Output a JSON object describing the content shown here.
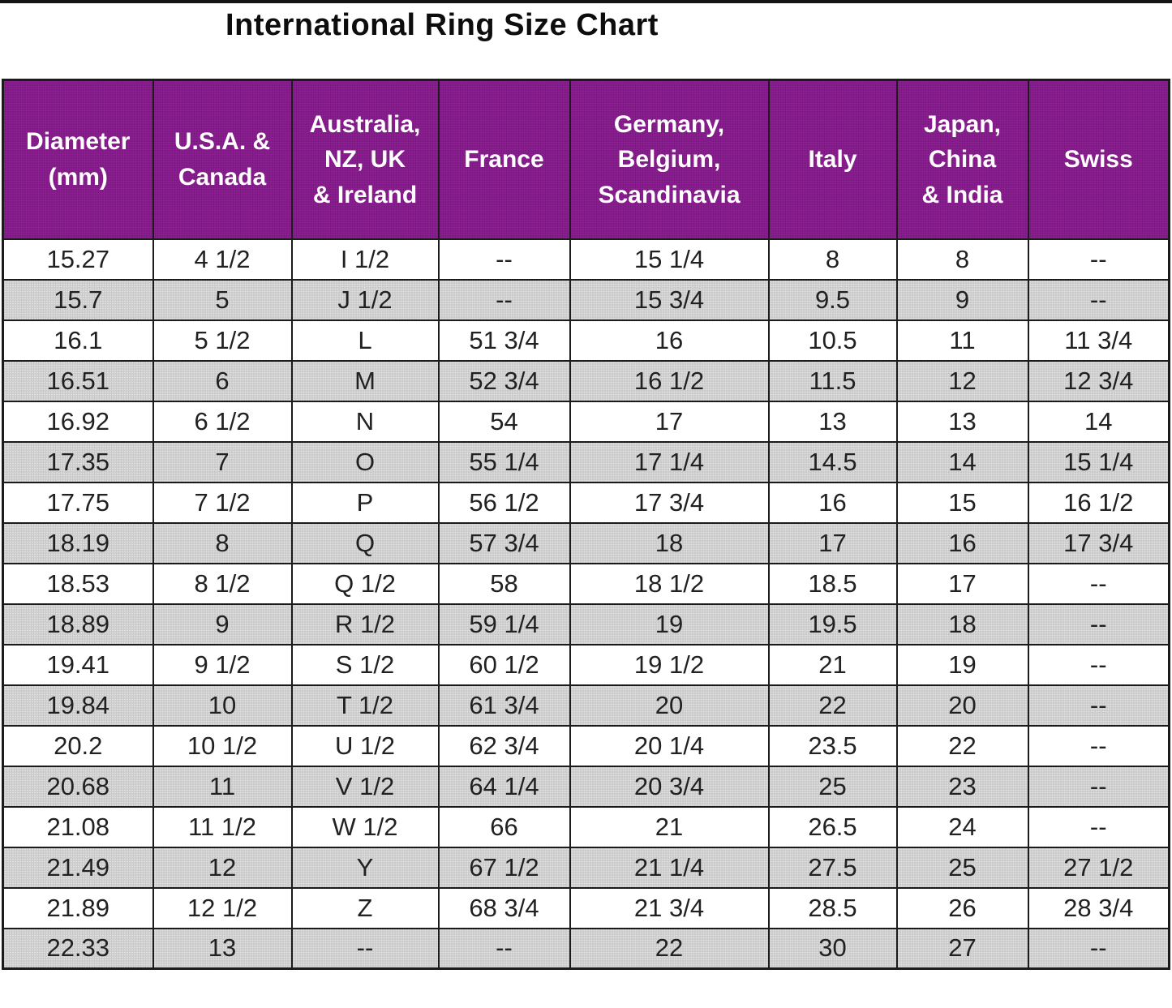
{
  "title": "International Ring Size Chart",
  "colors": {
    "header_bg": "#8C1E92",
    "header_text": "#FFFFFF",
    "row_alt_bg": "#C9C9C9",
    "border": "#1B1B1B",
    "text": "#212121"
  },
  "chart_data": {
    "type": "table",
    "title": "International Ring Size Chart",
    "columns": [
      "Diameter\n(mm)",
      "U.S.A. &\nCanada",
      "Australia,\nNZ, UK\n& Ireland",
      "France",
      "Germany,\nBelgium,\nScandinavia",
      "Italy",
      "Japan,\nChina\n& India",
      "Swiss"
    ],
    "rows": [
      [
        "15.27",
        "4 1/2",
        "I 1/2",
        "--",
        "15 1/4",
        "8",
        "8",
        "--"
      ],
      [
        "15.7",
        "5",
        "J 1/2",
        "--",
        "15 3/4",
        "9.5",
        "9",
        "--"
      ],
      [
        "16.1",
        "5 1/2",
        "L",
        "51 3/4",
        "16",
        "10.5",
        "11",
        "11 3/4"
      ],
      [
        "16.51",
        "6",
        "M",
        "52 3/4",
        "16 1/2",
        "11.5",
        "12",
        "12 3/4"
      ],
      [
        "16.92",
        "6 1/2",
        "N",
        "54",
        "17",
        "13",
        "13",
        "14"
      ],
      [
        "17.35",
        "7",
        "O",
        "55 1/4",
        "17 1/4",
        "14.5",
        "14",
        "15 1/4"
      ],
      [
        "17.75",
        "7 1/2",
        "P",
        "56 1/2",
        "17 3/4",
        "16",
        "15",
        "16 1/2"
      ],
      [
        "18.19",
        "8",
        "Q",
        "57 3/4",
        "18",
        "17",
        "16",
        "17 3/4"
      ],
      [
        "18.53",
        "8 1/2",
        "Q 1/2",
        "58",
        "18 1/2",
        "18.5",
        "17",
        "--"
      ],
      [
        "18.89",
        "9",
        "R 1/2",
        "59 1/4",
        "19",
        "19.5",
        "18",
        "--"
      ],
      [
        "19.41",
        "9 1/2",
        "S 1/2",
        "60 1/2",
        "19 1/2",
        "21",
        "19",
        "--"
      ],
      [
        "19.84",
        "10",
        "T 1/2",
        "61 3/4",
        "20",
        "22",
        "20",
        "--"
      ],
      [
        "20.2",
        "10 1/2",
        "U 1/2",
        "62 3/4",
        "20 1/4",
        "23.5",
        "22",
        "--"
      ],
      [
        "20.68",
        "11",
        "V 1/2",
        "64 1/4",
        "20 3/4",
        "25",
        "23",
        "--"
      ],
      [
        "21.08",
        "11 1/2",
        "W 1/2",
        "66",
        "21",
        "26.5",
        "24",
        "--"
      ],
      [
        "21.49",
        "12",
        "Y",
        "67 1/2",
        "21 1/4",
        "27.5",
        "25",
        "27 1/2"
      ],
      [
        "21.89",
        "12 1/2",
        "Z",
        "68 3/4",
        "21 3/4",
        "28.5",
        "26",
        "28 3/4"
      ],
      [
        "22.33",
        "13",
        "--",
        "--",
        "22",
        "30",
        "27",
        "--"
      ]
    ]
  }
}
